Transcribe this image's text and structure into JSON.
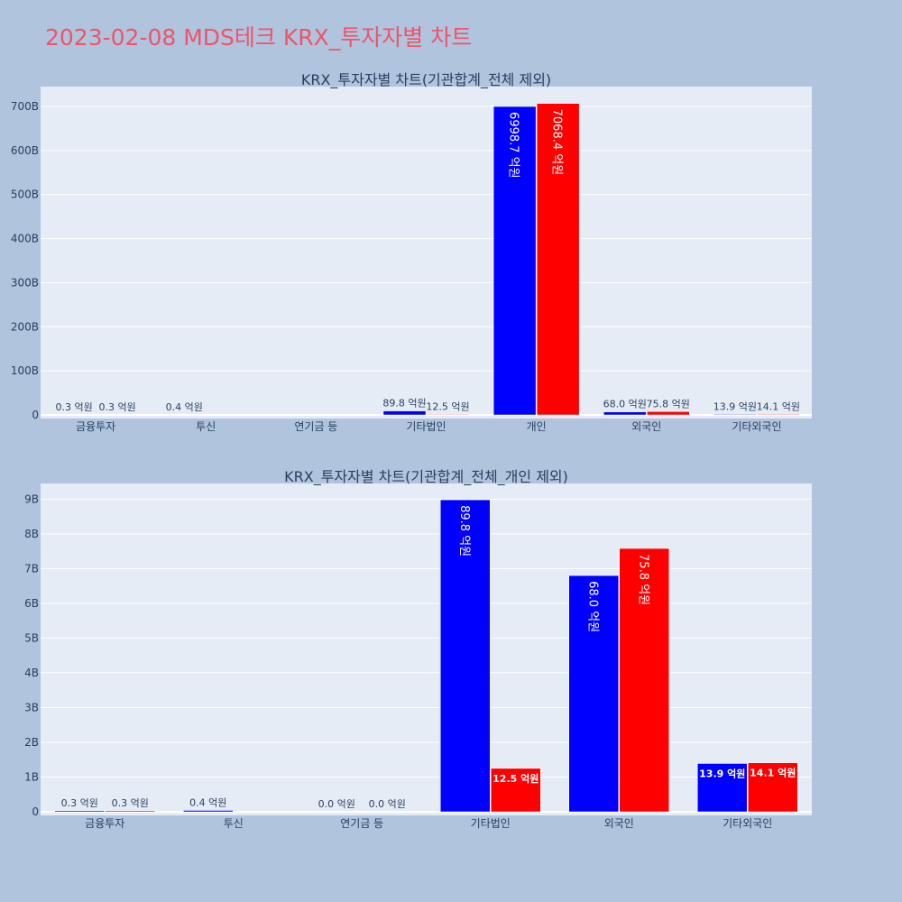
{
  "page_title": "2023-02-08 MDS테크 KRX_투자자별 차트",
  "colors": {
    "series_a": "#0000ff",
    "series_b": "#ff0000",
    "plot_bg": "#e5ecf6",
    "page_bg": "#b0c4de",
    "title": "#ef5468"
  },
  "chart_data": [
    {
      "type": "bar",
      "title": "KRX_투자자별 차트(기관합계_전체 제외)",
      "categories": [
        "금융투자",
        "투신",
        "연기금 등",
        "기타법인",
        "개인",
        "외국인",
        "기타외국인"
      ],
      "series": [
        {
          "color": "#0000ff",
          "values": [
            0.03,
            0.04,
            null,
            8.98,
            699.87,
            6.8,
            1.39
          ],
          "labels": [
            "0.3 억원",
            "0.4 억원",
            "",
            "89.8 억원",
            "6998.7 억원",
            "68.0 억원",
            "13.9 억원"
          ]
        },
        {
          "color": "#ff0000",
          "values": [
            0.03,
            null,
            null,
            1.25,
            706.84,
            7.58,
            1.41
          ],
          "labels": [
            "0.3 억원",
            "",
            "",
            "12.5 억원",
            "7068.4 억원",
            "75.8 억원",
            "14.1 억원"
          ]
        }
      ],
      "yticks": [
        "0",
        "100B",
        "200B",
        "300B",
        "400B",
        "500B",
        "600B",
        "700B"
      ],
      "ytick_values": [
        0,
        100,
        200,
        300,
        400,
        500,
        600,
        700
      ],
      "ylim": [
        0,
        745
      ],
      "grid": true
    },
    {
      "type": "bar",
      "title": "KRX_투자자별 차트(기관합계_전체_개인 제외)",
      "categories": [
        "금융투자",
        "투신",
        "연기금 등",
        "기타법인",
        "외국인",
        "기타외국인"
      ],
      "series": [
        {
          "color": "#0000ff",
          "values": [
            0.03,
            0.04,
            0.0,
            8.98,
            6.8,
            1.39
          ],
          "labels": [
            "0.3 억원",
            "0.4 억원",
            "0.0 억원",
            "89.8 억원",
            "68.0 억원",
            "13.9 억원"
          ]
        },
        {
          "color": "#ff0000",
          "values": [
            0.03,
            null,
            0.0,
            1.25,
            7.58,
            1.41
          ],
          "labels": [
            "0.3 억원",
            "",
            "0.0 억원",
            "12.5 억원",
            "75.8 억원",
            "14.1 억원"
          ]
        }
      ],
      "yticks": [
        "0",
        "1B",
        "2B",
        "3B",
        "4B",
        "5B",
        "6B",
        "7B",
        "8B",
        "9B"
      ],
      "ytick_values": [
        0,
        1,
        2,
        3,
        4,
        5,
        6,
        7,
        8,
        9
      ],
      "ylim": [
        0,
        9.45
      ],
      "grid": true
    }
  ]
}
